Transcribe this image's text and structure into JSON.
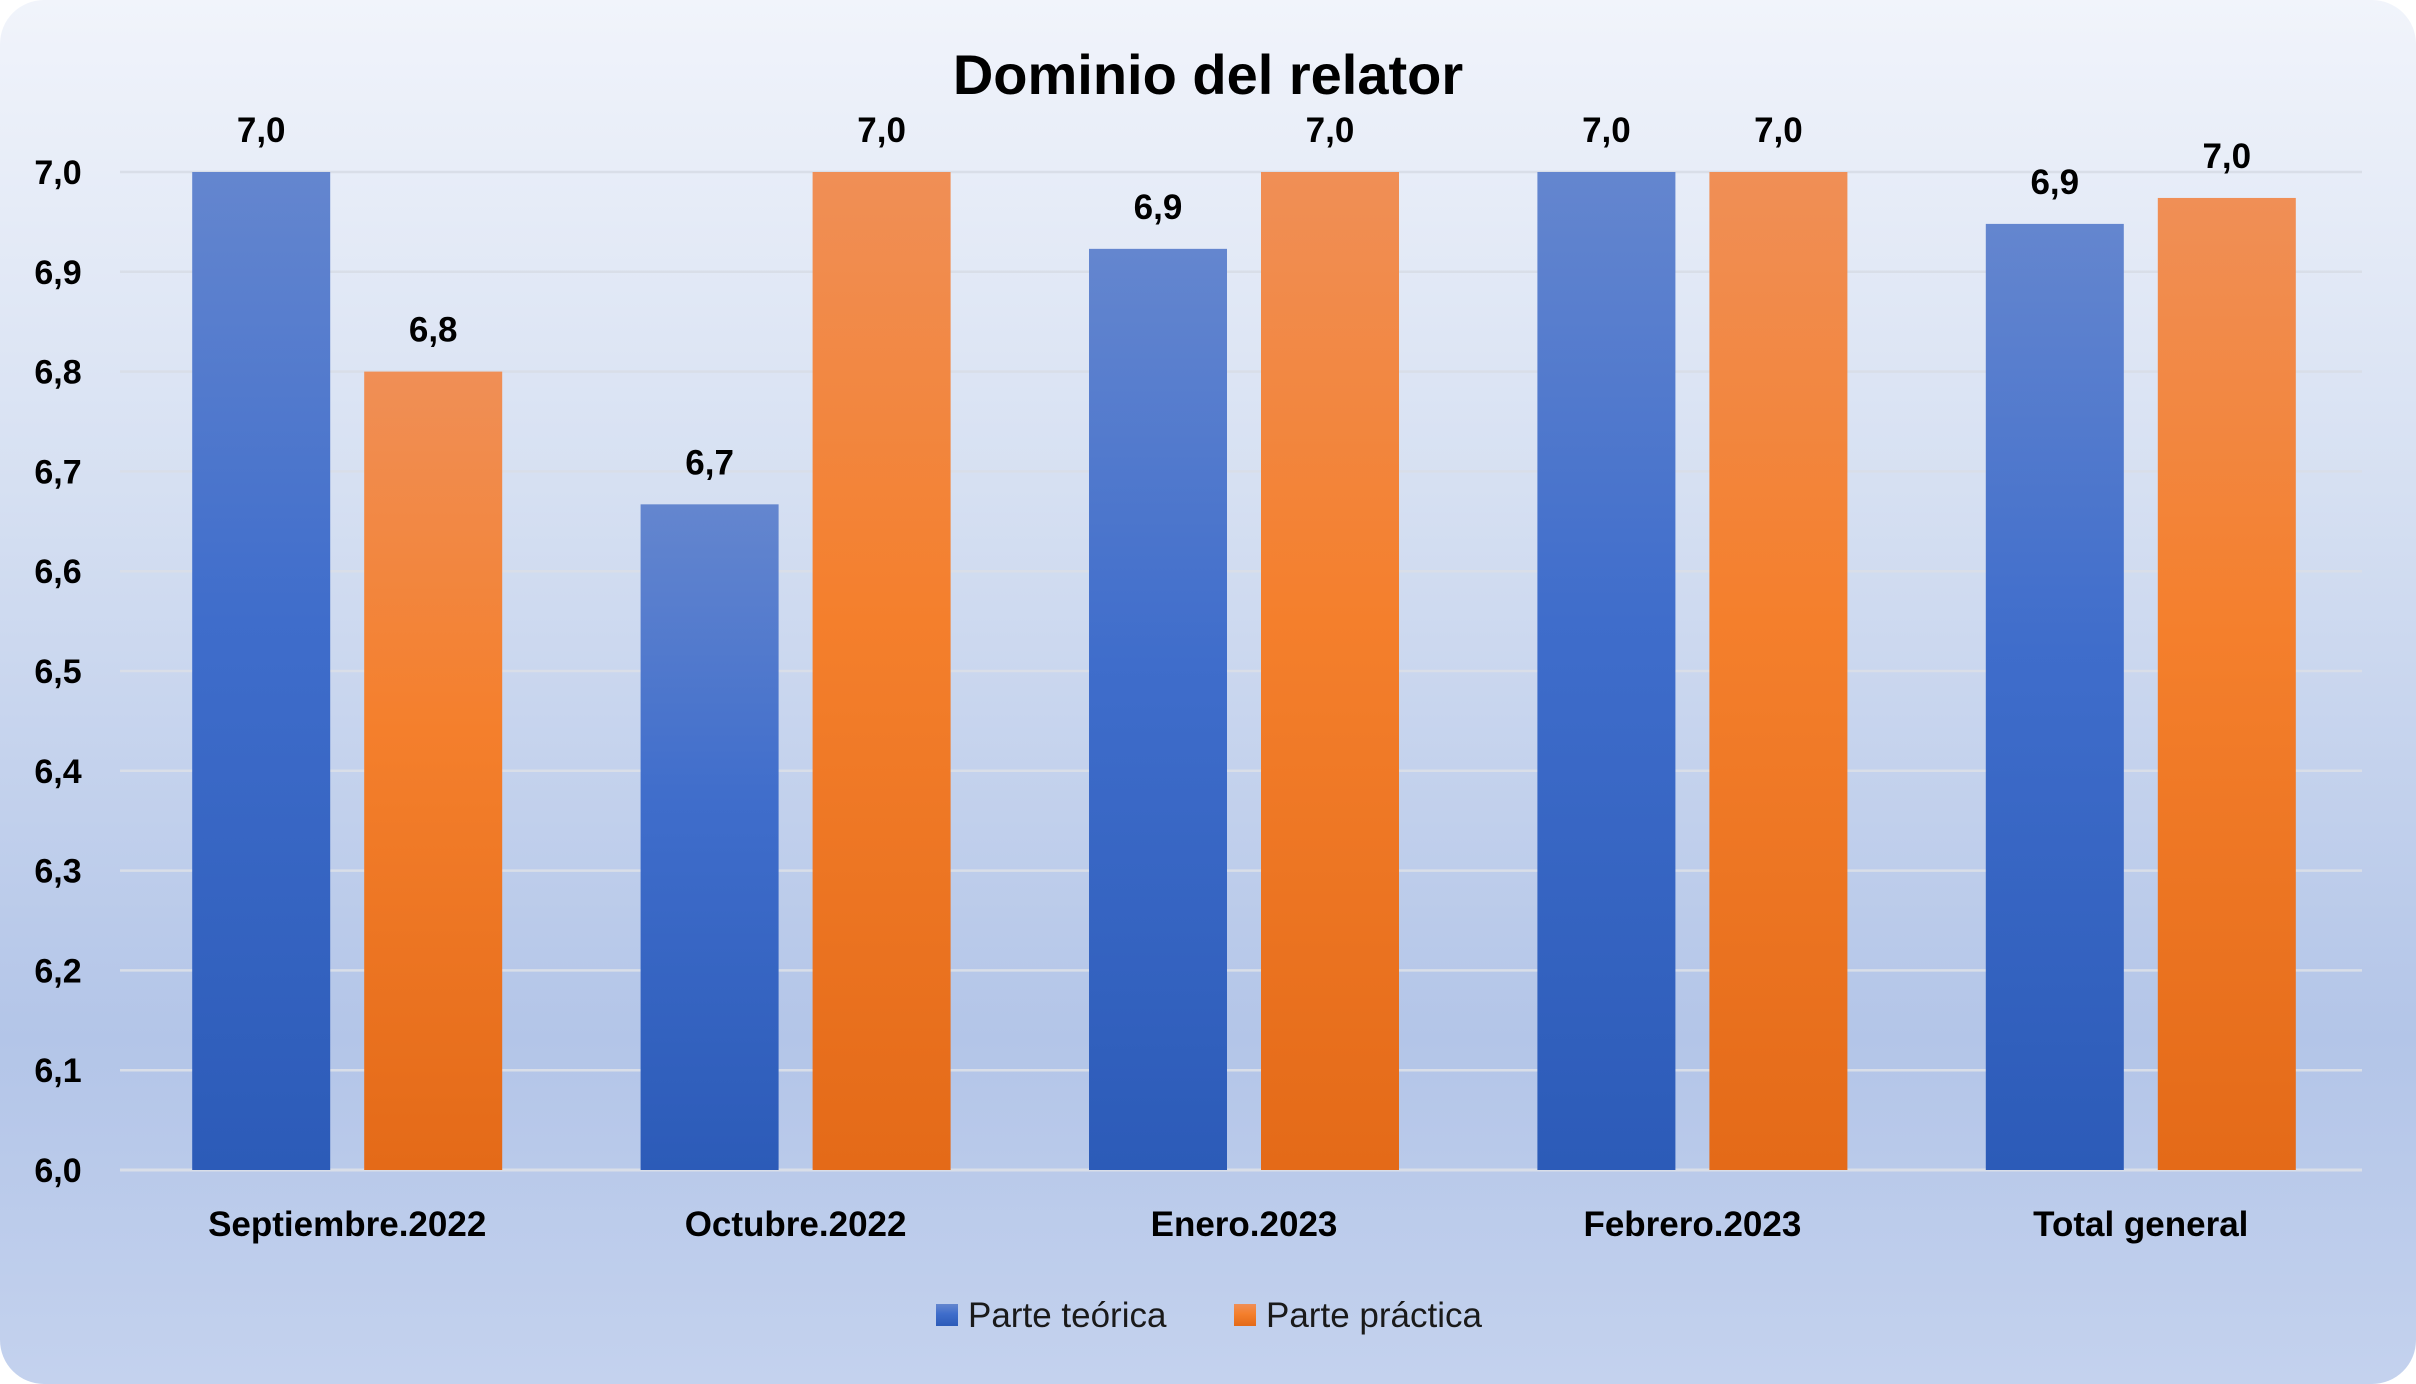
{
  "chart_data": {
    "type": "bar",
    "title": "Dominio del relator",
    "categories": [
      "Septiembre.2022",
      "Octubre.2022",
      "Enero.2023",
      "Febrero.2023",
      "Total general"
    ],
    "series": [
      {
        "name": "Parte teórica",
        "values": [
          7.0,
          6.667,
          6.923,
          7.0,
          6.948
        ],
        "labels": [
          "7,0",
          "6,7",
          "6,9",
          "7,0",
          "6,9"
        ],
        "color": "#4472c4"
      },
      {
        "name": "Parte práctica",
        "values": [
          6.8,
          7.0,
          7.0,
          7.0,
          6.974
        ],
        "labels": [
          "6,8",
          "7,0",
          "7,0",
          "7,0",
          "7,0"
        ],
        "color": "#ed7d31"
      }
    ],
    "ylim": [
      6.0,
      7.0
    ],
    "yticks": [
      "6,0",
      "6,1",
      "6,2",
      "6,3",
      "6,4",
      "6,5",
      "6,6",
      "6,7",
      "6,8",
      "6,9",
      "7,0"
    ],
    "xlabel": "",
    "ylabel": "",
    "grid": true,
    "legend": "bottom"
  }
}
